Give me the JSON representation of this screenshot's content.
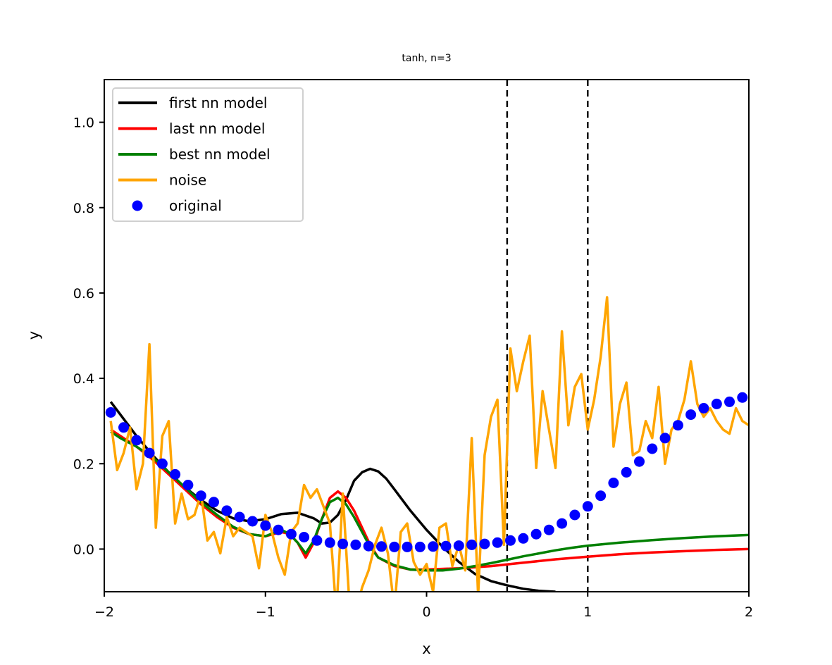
{
  "chart_data": {
    "type": "line",
    "title": "tanh, n=3",
    "xlabel": "x",
    "ylabel": "y",
    "xlim": [
      -2,
      2
    ],
    "ylim": [
      -0.1,
      1.1
    ],
    "x_ticks": [
      {
        "value": -2,
        "label": "−2"
      },
      {
        "value": -1,
        "label": "−1"
      },
      {
        "value": 0,
        "label": "0"
      },
      {
        "value": 1,
        "label": "1"
      },
      {
        "value": 2,
        "label": "2"
      }
    ],
    "y_ticks": [
      {
        "value": 0.0,
        "label": "0.0"
      },
      {
        "value": 0.2,
        "label": "0.2"
      },
      {
        "value": 0.4,
        "label": "0.4"
      },
      {
        "value": 0.6,
        "label": "0.6"
      },
      {
        "value": 0.8,
        "label": "0.8"
      },
      {
        "value": 1.0,
        "label": "1.0"
      }
    ],
    "grid": false,
    "legend_position": "top-left",
    "vertical_lines": [
      {
        "x": 0.5,
        "color": "#000000",
        "style": "dashed"
      },
      {
        "x": 1.0,
        "color": "#000000",
        "style": "dashed"
      }
    ],
    "series": [
      {
        "name": "first nn model",
        "kind": "line",
        "color": "#000000",
        "x": [
          -1.96,
          -1.9,
          -1.8,
          -1.7,
          -1.6,
          -1.5,
          -1.4,
          -1.3,
          -1.2,
          -1.1,
          -1.0,
          -0.9,
          -0.8,
          -0.7,
          -0.65,
          -0.6,
          -0.55,
          -0.5,
          -0.45,
          -0.4,
          -0.35,
          -0.3,
          -0.25,
          -0.2,
          -0.1,
          0.0,
          0.1,
          0.2,
          0.3,
          0.4,
          0.5,
          0.6,
          0.7,
          0.8
        ],
        "y": [
          0.345,
          0.315,
          0.265,
          0.22,
          0.18,
          0.145,
          0.115,
          0.09,
          0.072,
          0.065,
          0.07,
          0.082,
          0.085,
          0.072,
          0.06,
          0.062,
          0.08,
          0.115,
          0.16,
          0.18,
          0.188,
          0.182,
          0.165,
          0.14,
          0.09,
          0.045,
          0.005,
          -0.03,
          -0.058,
          -0.075,
          -0.085,
          -0.093,
          -0.098,
          -0.1
        ]
      },
      {
        "name": "last nn model",
        "kind": "line",
        "color": "#ff0000",
        "x": [
          -1.96,
          -1.9,
          -1.8,
          -1.7,
          -1.6,
          -1.5,
          -1.4,
          -1.3,
          -1.2,
          -1.1,
          -1.0,
          -0.9,
          -0.85,
          -0.8,
          -0.75,
          -0.7,
          -0.65,
          -0.6,
          -0.55,
          -0.5,
          -0.45,
          -0.4,
          -0.35,
          -0.3,
          -0.2,
          -0.1,
          0.0,
          0.2,
          0.4,
          0.6,
          0.8,
          1.0,
          1.2,
          1.4,
          1.6,
          1.8,
          2.0
        ],
        "y": [
          0.28,
          0.265,
          0.24,
          0.21,
          0.175,
          0.14,
          0.105,
          0.075,
          0.05,
          0.035,
          0.03,
          0.04,
          0.035,
          0.015,
          -0.02,
          0.015,
          0.07,
          0.12,
          0.135,
          0.12,
          0.09,
          0.05,
          0.01,
          -0.02,
          -0.04,
          -0.048,
          -0.048,
          -0.045,
          -0.04,
          -0.032,
          -0.024,
          -0.018,
          -0.012,
          -0.008,
          -0.005,
          -0.002,
          0.0
        ]
      },
      {
        "name": "best nn model",
        "kind": "line",
        "color": "#008000",
        "x": [
          -1.96,
          -1.9,
          -1.8,
          -1.7,
          -1.6,
          -1.5,
          -1.4,
          -1.3,
          -1.2,
          -1.1,
          -1.0,
          -0.9,
          -0.85,
          -0.8,
          -0.75,
          -0.7,
          -0.65,
          -0.6,
          -0.55,
          -0.5,
          -0.45,
          -0.4,
          -0.35,
          -0.3,
          -0.2,
          -0.1,
          0.0,
          0.1,
          0.2,
          0.3,
          0.4,
          0.5,
          0.6,
          0.7,
          0.8,
          0.9,
          1.0,
          1.2,
          1.4,
          1.6,
          1.8,
          2.0
        ],
        "y": [
          0.275,
          0.26,
          0.24,
          0.215,
          0.18,
          0.145,
          0.11,
          0.08,
          0.052,
          0.035,
          0.03,
          0.045,
          0.035,
          0.015,
          -0.01,
          0.02,
          0.07,
          0.11,
          0.12,
          0.105,
          0.075,
          0.04,
          0.005,
          -0.02,
          -0.038,
          -0.048,
          -0.05,
          -0.05,
          -0.046,
          -0.04,
          -0.033,
          -0.025,
          -0.017,
          -0.01,
          -0.003,
          0.003,
          0.008,
          0.015,
          0.021,
          0.026,
          0.03,
          0.033
        ]
      },
      {
        "name": "noise",
        "kind": "line",
        "color": "#ffa500",
        "x": [
          -1.96,
          -1.92,
          -1.88,
          -1.84,
          -1.8,
          -1.76,
          -1.72,
          -1.68,
          -1.64,
          -1.6,
          -1.56,
          -1.52,
          -1.48,
          -1.44,
          -1.4,
          -1.36,
          -1.32,
          -1.28,
          -1.24,
          -1.2,
          -1.16,
          -1.12,
          -1.08,
          -1.04,
          -1.0,
          -0.96,
          -0.92,
          -0.88,
          -0.84,
          -0.8,
          -0.76,
          -0.72,
          -0.68,
          -0.64,
          -0.6,
          -0.56,
          -0.52,
          -0.48,
          -0.44,
          -0.4,
          -0.36,
          -0.32,
          -0.28,
          -0.24,
          -0.2,
          -0.16,
          -0.12,
          -0.08,
          -0.04,
          0.0,
          0.04,
          0.08,
          0.12,
          0.16,
          0.2,
          0.24,
          0.28,
          0.32,
          0.36,
          0.4,
          0.44,
          0.48,
          0.52,
          0.56,
          0.6,
          0.64,
          0.68,
          0.72,
          0.76,
          0.8,
          0.84,
          0.88,
          0.92,
          0.96,
          1.0,
          1.04,
          1.08,
          1.12,
          1.16,
          1.2,
          1.24,
          1.28,
          1.32,
          1.36,
          1.4,
          1.44,
          1.48,
          1.52,
          1.56,
          1.6,
          1.64,
          1.68,
          1.72,
          1.76,
          1.8,
          1.84,
          1.88,
          1.92,
          1.96,
          2.0
        ],
        "y": [
          0.3,
          0.185,
          0.225,
          0.285,
          0.14,
          0.2,
          0.48,
          0.05,
          0.265,
          0.3,
          0.06,
          0.13,
          0.07,
          0.08,
          0.13,
          0.02,
          0.04,
          -0.01,
          0.075,
          0.03,
          0.05,
          0.04,
          0.03,
          -0.045,
          0.08,
          0.04,
          -0.02,
          -0.06,
          0.04,
          0.06,
          0.15,
          0.12,
          0.14,
          0.1,
          0.06,
          -0.15,
          0.13,
          -0.12,
          -0.15,
          -0.09,
          -0.05,
          0.01,
          0.05,
          -0.01,
          -0.14,
          0.04,
          0.06,
          -0.03,
          -0.06,
          -0.035,
          -0.1,
          0.05,
          0.06,
          -0.04,
          0.01,
          -0.05,
          0.26,
          -0.11,
          0.22,
          0.31,
          0.35,
          0.01,
          0.47,
          0.37,
          0.44,
          0.5,
          0.19,
          0.37,
          0.28,
          0.19,
          0.51,
          0.29,
          0.38,
          0.41,
          0.28,
          0.35,
          0.45,
          0.59,
          0.24,
          0.34,
          0.39,
          0.22,
          0.23,
          0.3,
          0.26,
          0.38,
          0.2,
          0.28,
          0.3,
          0.35,
          0.44,
          0.34,
          0.31,
          0.33,
          0.3,
          0.28,
          0.27,
          0.33,
          0.3,
          0.29
        ]
      },
      {
        "name": "original",
        "kind": "markers",
        "color": "#0000ff",
        "x": [
          -1.96,
          -1.88,
          -1.8,
          -1.72,
          -1.64,
          -1.56,
          -1.48,
          -1.4,
          -1.32,
          -1.24,
          -1.16,
          -1.08,
          -1.0,
          -0.92,
          -0.84,
          -0.76,
          -0.68,
          -0.6,
          -0.52,
          -0.44,
          -0.36,
          -0.28,
          -0.2,
          -0.12,
          -0.04,
          0.04,
          0.12,
          0.2,
          0.28,
          0.36,
          0.44,
          0.52,
          0.6,
          0.68,
          0.76,
          0.84,
          0.92,
          1.0,
          1.08,
          1.16,
          1.24,
          1.32,
          1.4,
          1.48,
          1.56,
          1.64,
          1.72,
          1.8,
          1.88,
          1.96
        ],
        "y": [
          0.32,
          0.285,
          0.255,
          0.225,
          0.2,
          0.175,
          0.15,
          0.125,
          0.11,
          0.09,
          0.075,
          0.065,
          0.055,
          0.045,
          0.035,
          0.028,
          0.02,
          0.015,
          0.012,
          0.01,
          0.007,
          0.006,
          0.005,
          0.005,
          0.005,
          0.006,
          0.007,
          0.008,
          0.01,
          0.012,
          0.015,
          0.02,
          0.025,
          0.035,
          0.045,
          0.06,
          0.08,
          0.1,
          0.125,
          0.155,
          0.18,
          0.205,
          0.235,
          0.26,
          0.29,
          0.315,
          0.33,
          0.34,
          0.345,
          0.355
        ]
      }
    ]
  }
}
